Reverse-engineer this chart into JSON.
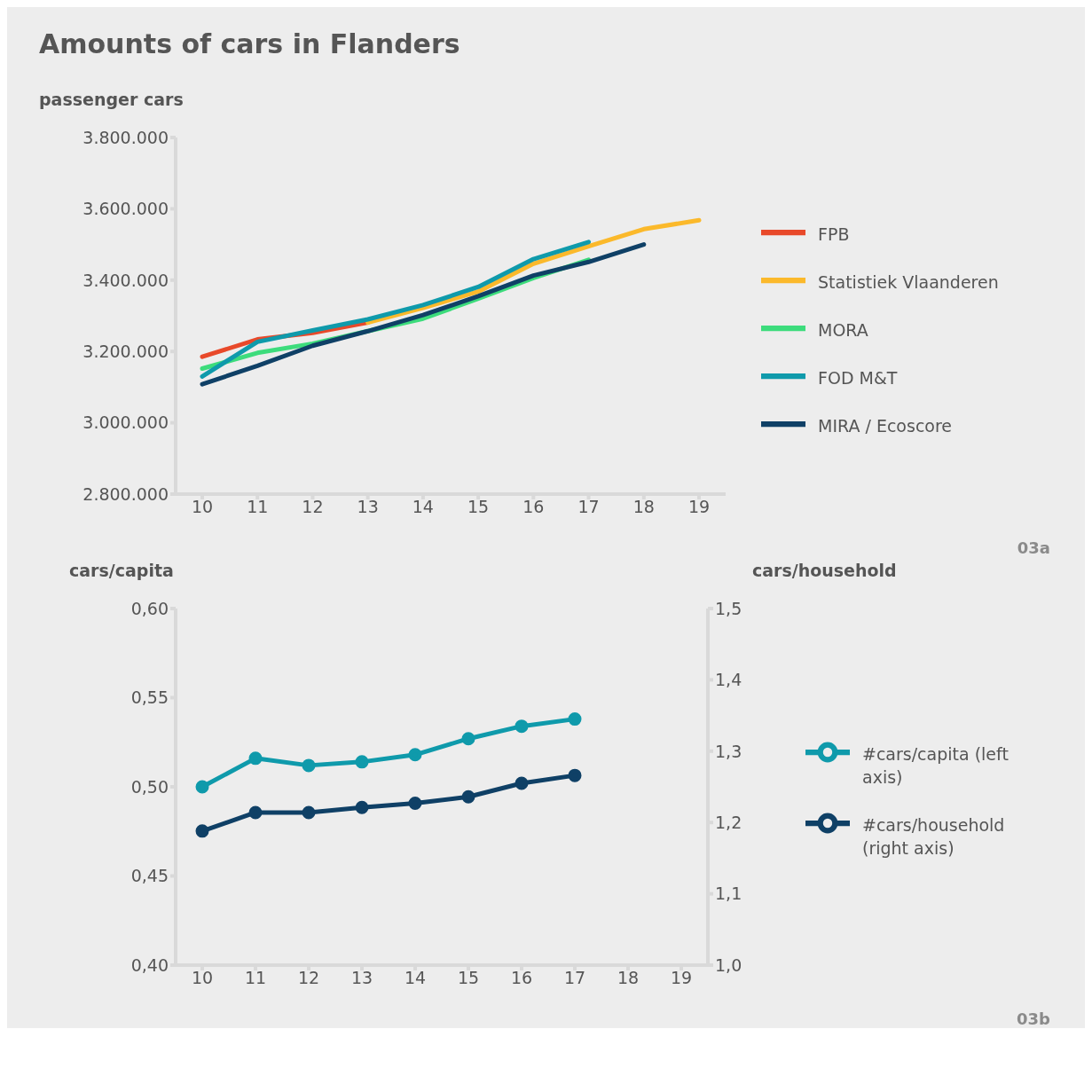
{
  "chart_data": [
    {
      "type": "line",
      "title": "Amounts of cars in Flanders",
      "ylabel": "passenger cars",
      "categories": [
        "10",
        "11",
        "12",
        "13",
        "14",
        "15",
        "16",
        "17",
        "18",
        "19"
      ],
      "series": [
        {
          "name": "FPB",
          "color": "#e8492a",
          "values": [
            3185000,
            3234000,
            3252000,
            3281000,
            null,
            null,
            null,
            null,
            null,
            null
          ]
        },
        {
          "name": "Statistiek Vlaanderen",
          "color": "#fbb92b",
          "values": [
            null,
            null,
            null,
            3281000,
            3322000,
            3368000,
            3446000,
            3495000,
            3543000,
            3568000
          ]
        },
        {
          "name": "MORA",
          "color": "#3ddc7c",
          "values": [
            3152000,
            3196000,
            3222000,
            3257000,
            3292000,
            3348000,
            3406000,
            3457000,
            null,
            null
          ]
        },
        {
          "name": "FOD M&T",
          "color": "#0f9aab",
          "values": [
            3130000,
            3227000,
            3259000,
            3290000,
            3330000,
            3381000,
            3459000,
            3507000,
            null,
            null
          ]
        },
        {
          "name": "MIRA / Ecoscore",
          "color": "#0f4066",
          "values": [
            3108000,
            3160000,
            3216000,
            3257000,
            3302000,
            3355000,
            3413000,
            3451000,
            3500000,
            null
          ]
        }
      ],
      "ylim": [
        2800000,
        3800000
      ],
      "yticks": [
        {
          "value": 2800000,
          "label": "2.800.000"
        },
        {
          "value": 3000000,
          "label": "3.000.000"
        },
        {
          "value": 3200000,
          "label": "3.200.000"
        },
        {
          "value": 3400000,
          "label": "3.400.000"
        },
        {
          "value": 3600000,
          "label": "3.600.000"
        },
        {
          "value": 3800000,
          "label": "3.800.000"
        }
      ],
      "legend": "right",
      "marker": "none",
      "line_style": "solid",
      "grid": false,
      "annotations": [
        "03a"
      ]
    },
    {
      "type": "line",
      "ylabel": "cars/capita",
      "y2label": "cars/household",
      "categories": [
        "10",
        "11",
        "12",
        "13",
        "14",
        "15",
        "16",
        "17",
        "18",
        "19"
      ],
      "series": [
        {
          "name": "#cars/capita (left axis)",
          "color": "#0f9aab",
          "values": [
            0.5,
            0.516,
            0.512,
            0.514,
            0.518,
            0.527,
            0.534,
            0.538,
            null,
            null
          ]
        },
        {
          "name": "#cars/household (right axis)",
          "color": "#0f4066",
          "axis": "y2",
          "values": [
            1.188,
            1.214,
            1.214,
            1.221,
            1.227,
            1.236,
            1.255,
            1.266,
            null,
            null
          ]
        }
      ],
      "ylim": [
        0.4,
        0.6
      ],
      "yticks": [
        {
          "value": 0.4,
          "label": "0,40"
        },
        {
          "value": 0.45,
          "label": "0,45"
        },
        {
          "value": 0.5,
          "label": "0,50"
        },
        {
          "value": 0.55,
          "label": "0,55"
        },
        {
          "value": 0.6,
          "label": "0,60"
        }
      ],
      "y2lim": [
        1.0,
        1.5
      ],
      "y2ticks": [
        {
          "value": 1.0,
          "label": "1,0"
        },
        {
          "value": 1.1,
          "label": "1,1"
        },
        {
          "value": 1.2,
          "label": "1,2"
        },
        {
          "value": 1.3,
          "label": "1,3"
        },
        {
          "value": 1.4,
          "label": "1,4"
        },
        {
          "value": 1.5,
          "label": "1,5"
        }
      ],
      "legend": "right",
      "marker": "circle",
      "line_style": "solid",
      "grid": false,
      "annotations": [
        "03b"
      ]
    }
  ]
}
